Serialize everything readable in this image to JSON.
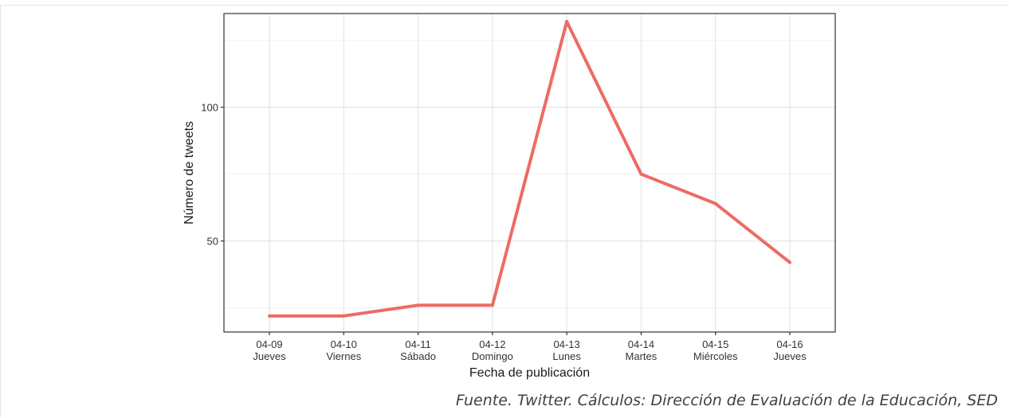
{
  "chart_data": {
    "type": "line",
    "title": "",
    "xlabel": "Fecha de publicación",
    "ylabel": "Número de tweets",
    "categories": [
      [
        "04-09",
        "Jueves"
      ],
      [
        "04-10",
        "Viernes"
      ],
      [
        "04-11",
        "Sábado"
      ],
      [
        "04-12",
        "Domingo"
      ],
      [
        "04-13",
        "Lunes"
      ],
      [
        "04-14",
        "Martes"
      ],
      [
        "04-15",
        "Miércoles"
      ],
      [
        "04-16",
        "Jueves"
      ]
    ],
    "series": [
      {
        "values": [
          22,
          22,
          26,
          26,
          132,
          75,
          64,
          42
        ],
        "color": "#ed6b64"
      }
    ],
    "ylim": [
      16,
      135
    ],
    "yticks": [
      50,
      100
    ],
    "grid": true,
    "legend": "none"
  },
  "source_note": "Fuente. Twitter. Cálculos: Dirección de Evaluación de la Educación, SED"
}
